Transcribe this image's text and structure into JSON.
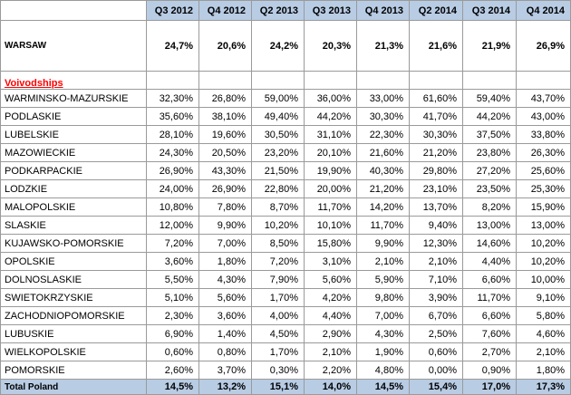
{
  "chart_data": {
    "type": "table",
    "columns": [
      "Q3 2012",
      "Q4 2012",
      "Q2 2013",
      "Q3 2013",
      "Q4 2013",
      "Q2 2014",
      "Q3 2014",
      "Q4 2014"
    ],
    "warsaw": {
      "label": "WARSAW",
      "values": [
        "24,7%",
        "20,6%",
        "24,2%",
        "20,3%",
        "21,3%",
        "21,6%",
        "21,9%",
        "26,9%"
      ]
    },
    "section_label": "Voivodships",
    "rows": [
      {
        "label": "WARMINSKO-MAZURSKIE",
        "values": [
          "32,30%",
          "26,80%",
          "59,00%",
          "36,00%",
          "33,00%",
          "61,60%",
          "59,40%",
          "43,70%"
        ]
      },
      {
        "label": "PODLASKIE",
        "values": [
          "35,60%",
          "38,10%",
          "49,40%",
          "44,20%",
          "30,30%",
          "41,70%",
          "44,20%",
          "43,00%"
        ]
      },
      {
        "label": "LUBELSKIE",
        "values": [
          "28,10%",
          "19,60%",
          "30,50%",
          "31,10%",
          "22,30%",
          "30,30%",
          "37,50%",
          "33,80%"
        ]
      },
      {
        "label": "MAZOWIECKIE",
        "values": [
          "24,30%",
          "20,50%",
          "23,20%",
          "20,10%",
          "21,60%",
          "21,20%",
          "23,80%",
          "26,30%"
        ]
      },
      {
        "label": "PODKARPACKIE",
        "values": [
          "26,90%",
          "43,30%",
          "21,50%",
          "19,90%",
          "40,30%",
          "29,80%",
          "27,20%",
          "25,60%"
        ]
      },
      {
        "label": "LODZKIE",
        "values": [
          "24,00%",
          "26,90%",
          "22,80%",
          "20,00%",
          "21,20%",
          "23,10%",
          "23,50%",
          "25,30%"
        ]
      },
      {
        "label": "MALOPOLSKIE",
        "values": [
          "10,80%",
          "7,80%",
          "8,70%",
          "11,70%",
          "14,20%",
          "13,70%",
          "8,20%",
          "15,90%"
        ]
      },
      {
        "label": "SLASKIE",
        "values": [
          "12,00%",
          "9,90%",
          "10,20%",
          "10,10%",
          "11,70%",
          "9,40%",
          "13,00%",
          "13,00%"
        ]
      },
      {
        "label": "KUJAWSKO-POMORSKIE",
        "values": [
          "7,20%",
          "7,00%",
          "8,50%",
          "15,80%",
          "9,90%",
          "12,30%",
          "14,60%",
          "10,20%"
        ]
      },
      {
        "label": "OPOLSKIE",
        "values": [
          "3,60%",
          "1,80%",
          "7,20%",
          "3,10%",
          "2,10%",
          "2,10%",
          "4,40%",
          "10,20%"
        ]
      },
      {
        "label": "DOLNOSLASKIE",
        "values": [
          "5,50%",
          "4,30%",
          "7,90%",
          "5,60%",
          "5,90%",
          "7,10%",
          "6,60%",
          "10,00%"
        ]
      },
      {
        "label": "SWIETOKRZYSKIE",
        "values": [
          "5,10%",
          "5,60%",
          "1,70%",
          "4,20%",
          "9,80%",
          "3,90%",
          "11,70%",
          "9,10%"
        ]
      },
      {
        "label": "ZACHODNIOPOMORSKIE",
        "values": [
          "2,30%",
          "3,60%",
          "4,00%",
          "4,40%",
          "7,00%",
          "6,70%",
          "6,60%",
          "5,80%"
        ]
      },
      {
        "label": "LUBUSKIE",
        "values": [
          "6,90%",
          "1,40%",
          "4,50%",
          "2,90%",
          "4,30%",
          "2,50%",
          "7,60%",
          "4,60%"
        ]
      },
      {
        "label": "WIELKOPOLSKIE",
        "values": [
          "0,60%",
          "0,80%",
          "1,70%",
          "2,10%",
          "1,90%",
          "0,60%",
          "2,70%",
          "2,10%"
        ]
      },
      {
        "label": "POMORSKIE",
        "values": [
          "2,60%",
          "3,70%",
          "0,30%",
          "2,20%",
          "4,80%",
          "0,00%",
          "0,90%",
          "1,80%"
        ]
      }
    ],
    "total": {
      "label": "Total Poland",
      "values": [
        "14,5%",
        "13,2%",
        "15,1%",
        "14,0%",
        "14,5%",
        "15,4%",
        "17,0%",
        "17,3%"
      ]
    }
  }
}
